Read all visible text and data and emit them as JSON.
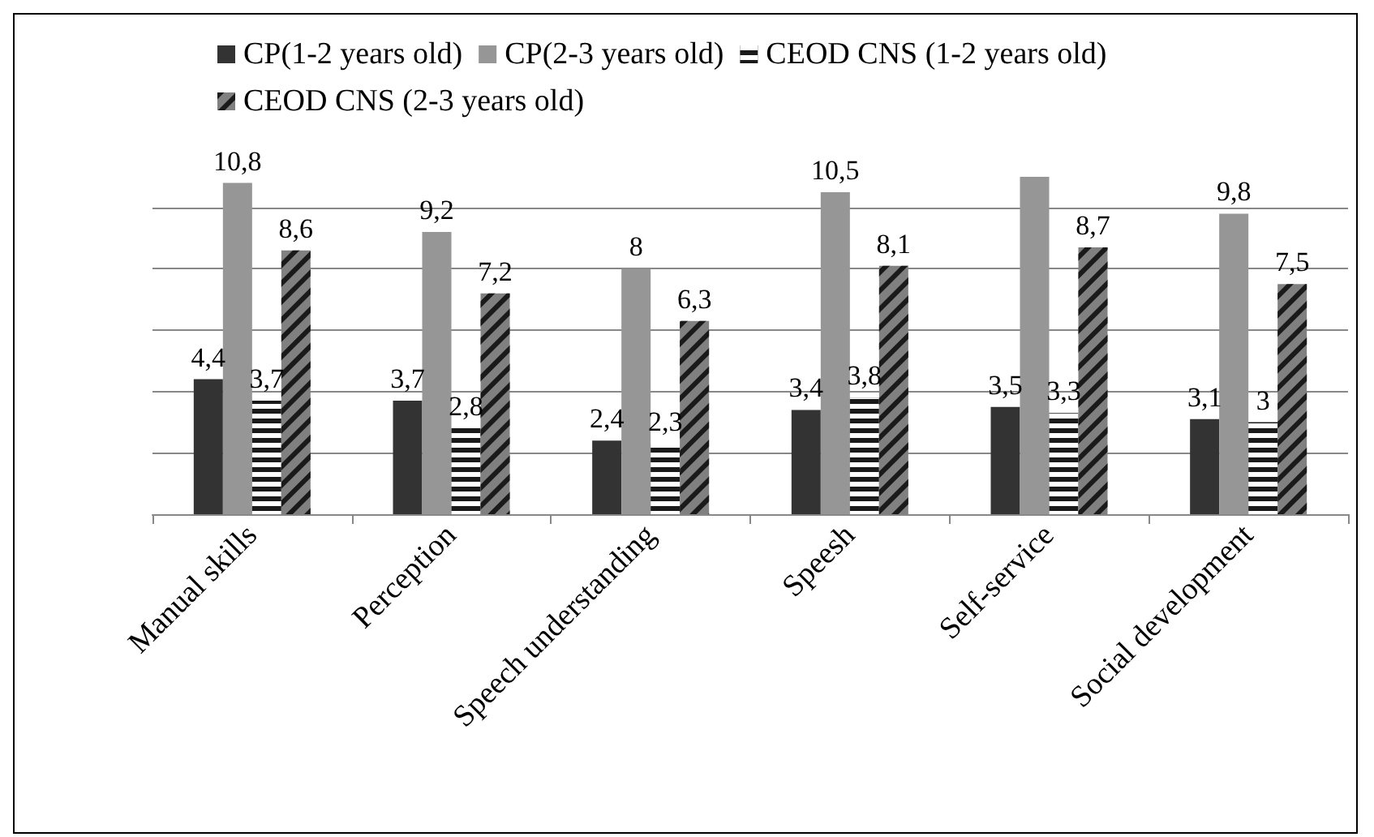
{
  "chart_data": {
    "type": "bar",
    "categories": [
      "Manual skills",
      "Perception",
      "Speech understanding",
      "Speesh",
      "Self-service",
      "Social development"
    ],
    "series": [
      {
        "name": "CP(1-2 years old)",
        "color": "#333333",
        "values": [
          4.4,
          3.7,
          2.4,
          3.4,
          3.5,
          3.1
        ],
        "value_labels": [
          "4,4",
          "3,7",
          "2,4",
          "3,4",
          "3,5",
          "3,1"
        ]
      },
      {
        "name": "CP(2-3 years old)",
        "color": "#969696",
        "values": [
          10.8,
          9.2,
          8,
          10.5,
          11,
          9.8
        ],
        "value_labels": [
          "10,8",
          "9,2",
          "8",
          "10,5",
          null,
          "9,8"
        ]
      },
      {
        "name": "CEOD CNS (1-2 years old)",
        "color": "#1a1a1a",
        "values": [
          3.7,
          2.8,
          2.3,
          3.8,
          3.3,
          3
        ],
        "value_labels": [
          "3,7",
          "2,8",
          "2,3",
          "3,8",
          "3,3",
          "3"
        ]
      },
      {
        "name": "CEOD CNS (2-3 years old)",
        "color": "#808080",
        "values": [
          8.6,
          7.2,
          6.3,
          8.1,
          8.7,
          7.5
        ],
        "value_labels": [
          "8,6",
          "7,2",
          "6,3",
          "8,1",
          "8,7",
          "7,5"
        ]
      }
    ],
    "yticks": [
      {
        "value": 0,
        "label": null
      },
      {
        "value": 2,
        "label": null
      },
      {
        "value": 4,
        "label": null
      },
      {
        "value": 6,
        "label": null
      },
      {
        "value": 8,
        "label": null
      },
      {
        "value": 10,
        "label": null
      }
    ],
    "tick_labels": "x",
    "grid": "y",
    "legend": "top"
  }
}
